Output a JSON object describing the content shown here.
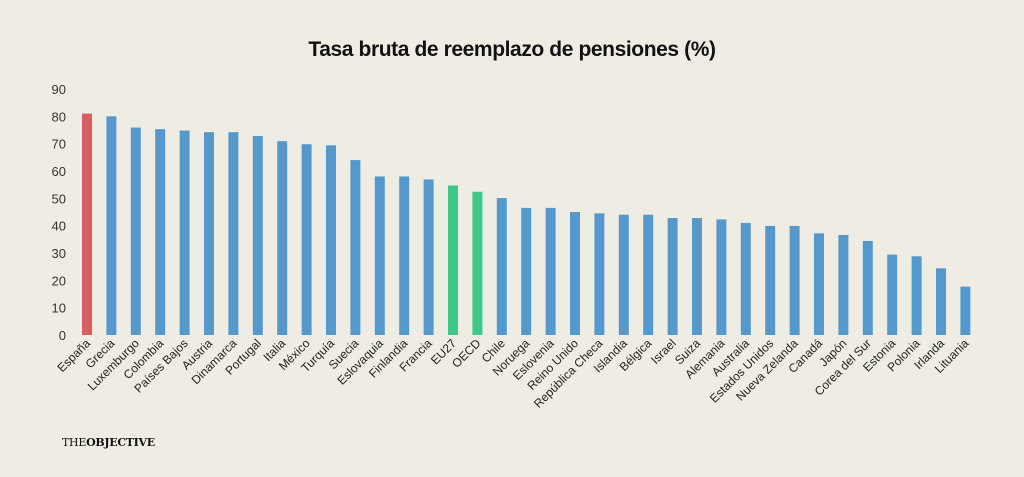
{
  "chart_data": {
    "type": "bar",
    "title": "Tasa bruta de reemplazo de pensiones (%)",
    "xlabel": "",
    "ylabel": "",
    "ylim": [
      0,
      90
    ],
    "yticks": [
      "0",
      "10",
      "20",
      "30",
      "40",
      "50",
      "60",
      "70",
      "80",
      "90"
    ],
    "grid": false,
    "categories": [
      "España",
      "Grecia",
      "Luxemburgo",
      "Colombia",
      "Países Bajos",
      "Austria",
      "Dinamarca",
      "Portugal",
      "Italia",
      "México",
      "Turquía",
      "Suecia",
      "Eslovaquia",
      "Finlandia",
      "Francia",
      "EU27",
      "OECD",
      "Chile",
      "Noruega",
      "Eslovenia",
      "Reino Unido",
      "República Checa",
      "Islandia",
      "Bélgica",
      "Israel",
      "Suiza",
      "Alemania",
      "Australia",
      "Estados Unidos",
      "Nueva Zelanda",
      "Canadá",
      "Japón",
      "Corea del Sur",
      "Estonia",
      "Polonia",
      "Irlanda",
      "Lituania"
    ],
    "values": [
      81.0,
      80.0,
      75.9,
      75.3,
      74.8,
      74.2,
      74.2,
      72.8,
      70.9,
      69.8,
      69.4,
      64.0,
      58.0,
      58.0,
      56.9,
      54.7,
      52.4,
      50.1,
      46.5,
      46.5,
      45.0,
      44.5,
      44.0,
      44.0,
      42.8,
      42.8,
      42.3,
      41.0,
      39.9,
      39.9,
      37.2,
      36.6,
      34.4,
      29.4,
      28.8,
      24.4,
      17.7
    ],
    "highlight": {
      "España": "#d65f5f",
      "EU27": "#3ec98b",
      "OECD": "#3ec98b"
    },
    "default_color": "#5599cc"
  },
  "brand": {
    "prefix": "THE",
    "name": "OBJECTIVE"
  }
}
